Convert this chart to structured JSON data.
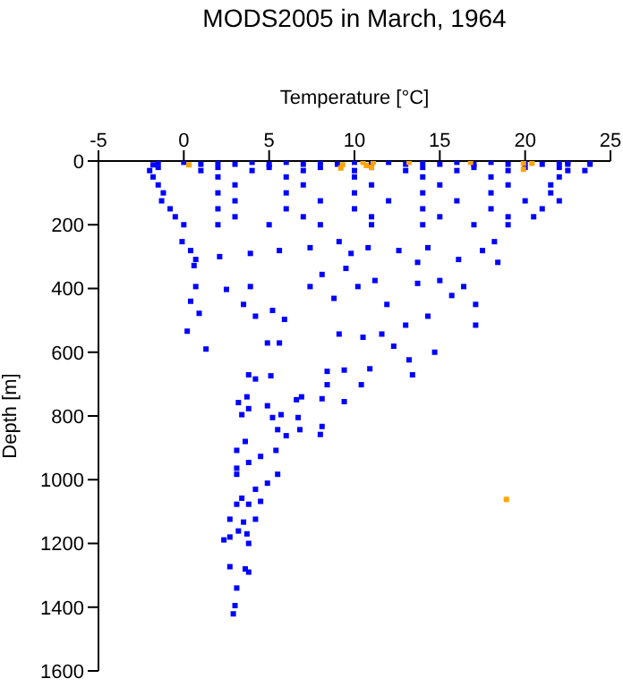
{
  "chart_data": {
    "type": "scatter",
    "title": "MODS2005 in March, 1964",
    "xlabel": "Temperature [°C]",
    "ylabel": "Depth [m]",
    "xlim": [
      -5,
      25
    ],
    "xticks": [
      -5,
      0,
      5,
      10,
      15,
      20,
      25
    ],
    "ylim": [
      1600,
      0
    ],
    "yticks": [
      0,
      200,
      400,
      600,
      800,
      1000,
      1200,
      1400,
      1600
    ],
    "grid": false,
    "marker": "square",
    "series": [
      {
        "color": "#0000ff",
        "x": [
          -1.5,
          0,
          2,
          4,
          6,
          8,
          10,
          12,
          14,
          16,
          18,
          20,
          22,
          22.5,
          23.8,
          -1.8,
          1,
          3,
          5,
          7,
          9,
          11,
          13,
          15,
          17,
          19,
          21,
          22.5,
          23.8,
          -1.5,
          2,
          5,
          8,
          11,
          14,
          17,
          20,
          22,
          -2,
          1,
          4,
          7,
          10,
          13,
          16,
          19,
          22.5,
          23.5,
          -1.8,
          2,
          6,
          10,
          14,
          18,
          22,
          -1.5,
          3,
          7,
          11,
          15,
          19,
          21.5,
          -1.2,
          2,
          6,
          10,
          14,
          18,
          21.5,
          -1.3,
          3,
          8,
          12,
          16,
          20,
          22,
          -0.8,
          2,
          6,
          10,
          14,
          18,
          21,
          -0.5,
          3,
          7,
          11,
          15,
          19,
          20.5,
          0,
          2,
          5,
          8,
          11,
          14,
          17,
          19,
          -0.1,
          0.4,
          0.6,
          0.7,
          2.1,
          3.9,
          5.6,
          7.4,
          9.1,
          9.8,
          10.8,
          12.6,
          14.3,
          16.1,
          17.5,
          18.4,
          18.2,
          0.7,
          0.4,
          0.9,
          0.2,
          1.3,
          2.5,
          3.9,
          3.5,
          4.2,
          5.2,
          5.9,
          4.9,
          5.6,
          7.4,
          8.1,
          8.8,
          9.5,
          10.2,
          11.2,
          11.9,
          9.1,
          10.5,
          11.6,
          13,
          14.3,
          13.7,
          15,
          15.7,
          16.4,
          17.1,
          17.1,
          14.7,
          12.3,
          13.7,
          13.2,
          3.8,
          5.1,
          4.2,
          8.4,
          9.4,
          8.4,
          10.4,
          9.4,
          8.1,
          10.9,
          13.4,
          3.7,
          3.2,
          3.8,
          3.4,
          4.9,
          5.2,
          5.7,
          6.6,
          6.9,
          6.7,
          6.8,
          8,
          8.1,
          5.5,
          6,
          3.6,
          3.1,
          5.4,
          4.5,
          3.8,
          3.1,
          3.1,
          5.5,
          4.9,
          4.2,
          3.4,
          3.1,
          3.8,
          4.5,
          2.7,
          3.5,
          4.2,
          2.35,
          2.7,
          3.2,
          3.7,
          3.8,
          2.7,
          3.6,
          3.8,
          3.1,
          2.9,
          3
        ],
        "values": [
          4,
          4,
          4,
          4,
          4,
          4,
          4,
          4,
          4,
          4,
          4,
          4,
          4,
          4,
          4,
          12,
          10,
          10,
          10,
          10,
          10,
          10,
          10,
          10,
          10,
          10,
          10,
          10,
          10,
          20,
          20,
          20,
          20,
          20,
          20,
          20,
          20,
          20,
          30,
          30,
          30,
          30,
          30,
          30,
          30,
          30,
          30,
          30,
          50,
          50,
          50,
          50,
          50,
          50,
          50,
          75,
          75,
          75,
          75,
          75,
          75,
          75,
          100,
          100,
          100,
          100,
          100,
          100,
          100,
          125,
          125,
          125,
          125,
          125,
          125,
          125,
          150,
          150,
          150,
          150,
          150,
          150,
          150,
          175,
          175,
          175,
          175,
          175,
          175,
          175,
          200,
          200,
          200,
          200,
          200,
          200,
          200,
          200,
          253,
          281,
          328,
          309,
          300,
          290,
          281,
          272,
          253,
          290,
          272,
          281,
          272,
          309,
          281,
          318,
          253,
          394,
          440,
          478,
          534,
          590,
          403,
          394,
          450,
          487,
          469,
          497,
          571,
          571,
          394,
          356,
          431,
          337,
          394,
          375,
          450,
          543,
          553,
          543,
          515,
          487,
          384,
          375,
          422,
          394,
          450,
          515,
          600,
          581,
          318,
          624,
          671,
          674,
          684,
          660,
          656,
          702,
          702,
          755,
          746,
          652,
          671,
          740,
          758,
          777,
          796,
          768,
          805,
          796,
          749,
          740,
          805,
          843,
          858,
          833,
          843,
          862,
          880,
          908,
          908,
          927,
          946,
          964,
          983,
          983,
          1011,
          1030,
          1058,
          1077,
          1077,
          1068,
          1124,
          1133,
          1124,
          1189,
          1180,
          1161,
          1170,
          1200,
          1273,
          1280,
          1290,
          1340,
          1421,
          1395
        ]
      },
      {
        "color": "#ffa500",
        "x": [
          0.3,
          9.3,
          9.2,
          10.5,
          10.7,
          11,
          11.1,
          13.2,
          16.8,
          19.9,
          20.4,
          19.9,
          18.9
        ],
        "values": [
          12,
          12,
          22,
          4,
          14,
          20,
          4,
          4,
          4,
          7,
          7,
          26,
          1062
        ]
      }
    ]
  }
}
